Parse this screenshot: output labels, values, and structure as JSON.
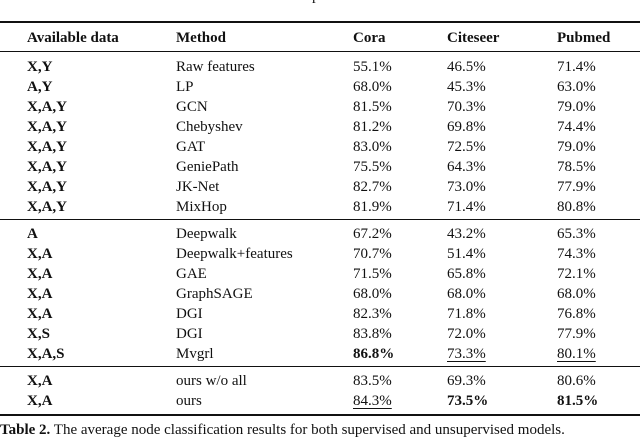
{
  "top_fragment": "p",
  "header": [
    "Available data",
    "Method",
    "Cora",
    "Citeseer",
    "Pubmed"
  ],
  "groups": [
    [
      {
        "data": "X,Y",
        "method": "Raw features",
        "cora": "55.1%",
        "citeseer": "46.5%",
        "pubmed": "71.4%"
      },
      {
        "data": "A,Y",
        "method": "LP",
        "cora": "68.0%",
        "citeseer": "45.3%",
        "pubmed": "63.0%"
      },
      {
        "data": "X,A,Y",
        "method": "GCN",
        "cora": "81.5%",
        "citeseer": "70.3%",
        "pubmed": "79.0%"
      },
      {
        "data": "X,A,Y",
        "method": "Chebyshev",
        "cora": "81.2%",
        "citeseer": "69.8%",
        "pubmed": "74.4%"
      },
      {
        "data": "X,A,Y",
        "method": "GAT",
        "cora": "83.0%",
        "citeseer": "72.5%",
        "pubmed": "79.0%"
      },
      {
        "data": "X,A,Y",
        "method": "GeniePath",
        "cora": "75.5%",
        "citeseer": "64.3%",
        "pubmed": "78.5%"
      },
      {
        "data": "X,A,Y",
        "method": "JK-Net",
        "cora": "82.7%",
        "citeseer": "73.0%",
        "pubmed": "77.9%"
      },
      {
        "data": "X,A,Y",
        "method": "MixHop",
        "cora": "81.9%",
        "citeseer": "71.4%",
        "pubmed": "80.8%"
      }
    ],
    [
      {
        "data": "A",
        "method": "Deepwalk",
        "cora": "67.2%",
        "citeseer": "43.2%",
        "pubmed": "65.3%"
      },
      {
        "data": "X,A",
        "method": "Deepwalk+features",
        "cora": "70.7%",
        "citeseer": "51.4%",
        "pubmed": "74.3%"
      },
      {
        "data": "X,A",
        "method": "GAE",
        "cora": "71.5%",
        "citeseer": "65.8%",
        "pubmed": "72.1%"
      },
      {
        "data": "X,A",
        "method": "GraphSAGE",
        "cora": "68.0%",
        "citeseer": "68.0%",
        "pubmed": "68.0%"
      },
      {
        "data": "X,A",
        "method": "DGI",
        "cora": "82.3%",
        "citeseer": "71.8%",
        "pubmed": "76.8%"
      },
      {
        "data": "X,S",
        "method": "DGI",
        "cora": "83.8%",
        "citeseer": "72.0%",
        "pubmed": "77.9%"
      },
      {
        "data": "X,A,S",
        "method": "Mvgrl",
        "cora": "86.8%",
        "citeseer": "73.3%",
        "pubmed": "80.1%",
        "style": {
          "cora": "b",
          "citeseer": "u",
          "pubmed": "u"
        }
      }
    ],
    [
      {
        "data": "X,A",
        "method": "ours w/o all",
        "cora": "83.5%",
        "citeseer": "69.3%",
        "pubmed": "80.6%"
      },
      {
        "data": "X,A",
        "method": "ours",
        "cora": "84.3%",
        "citeseer": "73.5%",
        "pubmed": "81.5%",
        "style": {
          "cora": "u",
          "citeseer": "b",
          "pubmed": "b"
        }
      }
    ]
  ],
  "caption": {
    "label": "Table 2.",
    "text": " The average node classification results for both supervised and unsupervised models."
  }
}
